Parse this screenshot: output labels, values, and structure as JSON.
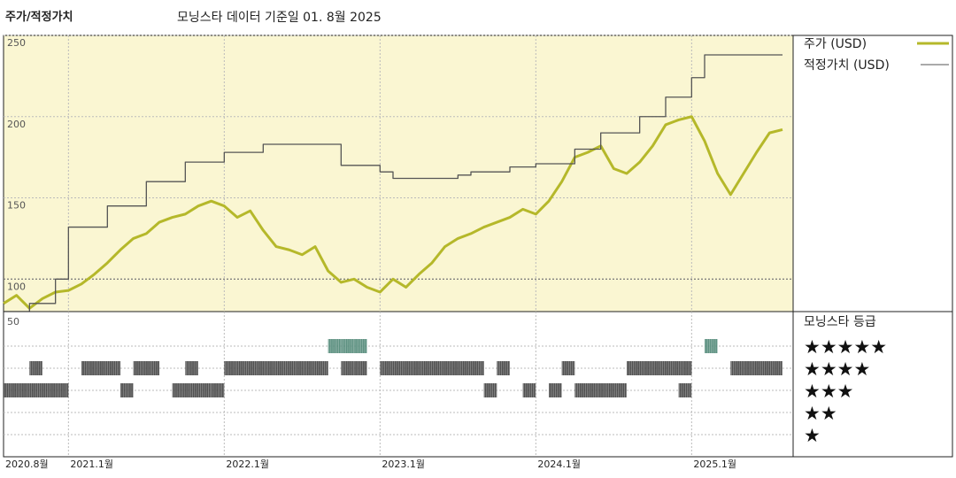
{
  "header": {
    "title": "주가/적정가치",
    "subtitle": "모닝스타 데이터 기준일 01. 8월 2025"
  },
  "colors": {
    "price": "#b5b82a",
    "fair_value": "#555555",
    "panel_bg": "#faf6d2",
    "rating_5": "#3f7d6a",
    "rating_bar": "#333333"
  },
  "chart_data": {
    "type": "line",
    "title": "주가/적정가치",
    "subtitle": "모닝스타 데이터 기준일 01. 8월 2025",
    "x_ticks": [
      "2020.8월",
      "2021.1월",
      "2022.1월",
      "2023.1월",
      "2024.1월",
      "2025.1월"
    ],
    "x_tick_dates": [
      "2020-08",
      "2021-01",
      "2022-01",
      "2023-01",
      "2024-01",
      "2025-01"
    ],
    "x_range": [
      "2020-08",
      "2025-08"
    ],
    "y_ticks": [
      100,
      150,
      200,
      250
    ],
    "ylim": [
      80,
      250
    ],
    "grid": true,
    "legend_position": "right",
    "series": [
      {
        "name": "주가 (USD)",
        "points": [
          [
            "2020-08",
            85
          ],
          [
            "2020-09",
            90
          ],
          [
            "2020-10",
            82
          ],
          [
            "2020-11",
            88
          ],
          [
            "2020-12",
            92
          ],
          [
            "2021-01",
            93
          ],
          [
            "2021-02",
            97
          ],
          [
            "2021-03",
            103
          ],
          [
            "2021-04",
            110
          ],
          [
            "2021-05",
            118
          ],
          [
            "2021-06",
            125
          ],
          [
            "2021-07",
            128
          ],
          [
            "2021-08",
            135
          ],
          [
            "2021-09",
            138
          ],
          [
            "2021-10",
            140
          ],
          [
            "2021-11",
            145
          ],
          [
            "2021-12",
            148
          ],
          [
            "2022-01",
            145
          ],
          [
            "2022-02",
            138
          ],
          [
            "2022-03",
            142
          ],
          [
            "2022-04",
            130
          ],
          [
            "2022-05",
            120
          ],
          [
            "2022-06",
            118
          ],
          [
            "2022-07",
            115
          ],
          [
            "2022-08",
            120
          ],
          [
            "2022-09",
            105
          ],
          [
            "2022-10",
            98
          ],
          [
            "2022-11",
            100
          ],
          [
            "2022-12",
            95
          ],
          [
            "2023-01",
            92
          ],
          [
            "2023-02",
            100
          ],
          [
            "2023-03",
            95
          ],
          [
            "2023-04",
            103
          ],
          [
            "2023-05",
            110
          ],
          [
            "2023-06",
            120
          ],
          [
            "2023-07",
            125
          ],
          [
            "2023-08",
            128
          ],
          [
            "2023-09",
            132
          ],
          [
            "2023-10",
            135
          ],
          [
            "2023-11",
            138
          ],
          [
            "2023-12",
            143
          ],
          [
            "2024-01",
            140
          ],
          [
            "2024-02",
            148
          ],
          [
            "2024-03",
            160
          ],
          [
            "2024-04",
            175
          ],
          [
            "2024-05",
            178
          ],
          [
            "2024-06",
            182
          ],
          [
            "2024-07",
            168
          ],
          [
            "2024-08",
            165
          ],
          [
            "2024-09",
            172
          ],
          [
            "2024-10",
            182
          ],
          [
            "2024-11",
            195
          ],
          [
            "2024-12",
            198
          ],
          [
            "2025-01",
            200
          ],
          [
            "2025-02",
            185
          ],
          [
            "2025-03",
            165
          ],
          [
            "2025-04",
            152
          ],
          [
            "2025-05",
            165
          ],
          [
            "2025-06",
            178
          ],
          [
            "2025-07",
            190
          ],
          [
            "2025-08",
            192
          ]
        ]
      },
      {
        "name": "적정가치 (USD)",
        "step": true,
        "points": [
          [
            "2020-08",
            80
          ],
          [
            "2020-10",
            85
          ],
          [
            "2020-12",
            100
          ],
          [
            "2021-01",
            132
          ],
          [
            "2021-04",
            145
          ],
          [
            "2021-07",
            160
          ],
          [
            "2021-10",
            172
          ],
          [
            "2022-01",
            178
          ],
          [
            "2022-04",
            183
          ],
          [
            "2022-10",
            170
          ],
          [
            "2023-01",
            166
          ],
          [
            "2023-02",
            162
          ],
          [
            "2023-07",
            164
          ],
          [
            "2023-08",
            166
          ],
          [
            "2023-11",
            169
          ],
          [
            "2024-01",
            171
          ],
          [
            "2024-04",
            180
          ],
          [
            "2024-06",
            190
          ],
          [
            "2024-09",
            200
          ],
          [
            "2024-11",
            212
          ],
          [
            "2025-01",
            224
          ],
          [
            "2025-02",
            238
          ],
          [
            "2025-08",
            238
          ]
        ]
      }
    ],
    "rating_panel": {
      "title": "모닝스타 등급",
      "levels": [
        "★★★★★",
        "★★★★",
        "★★★",
        "★★",
        "★"
      ],
      "axis_label": "50",
      "segments": [
        {
          "stars": 3,
          "start": "2020-08",
          "end": "2021-01"
        },
        {
          "stars": 4,
          "start": "2020-10",
          "end": "2020-11"
        },
        {
          "stars": 4,
          "start": "2021-02",
          "end": "2021-05"
        },
        {
          "stars": 4,
          "start": "2021-06",
          "end": "2021-08"
        },
        {
          "stars": 3,
          "start": "2021-05",
          "end": "2021-06"
        },
        {
          "stars": 3,
          "start": "2021-09",
          "end": "2021-12"
        },
        {
          "stars": 4,
          "start": "2021-10",
          "end": "2021-11"
        },
        {
          "stars": 3,
          "start": "2021-12",
          "end": "2022-01"
        },
        {
          "stars": 4,
          "start": "2022-01",
          "end": "2022-09"
        },
        {
          "stars": 5,
          "start": "2022-09",
          "end": "2022-10"
        },
        {
          "stars": 5,
          "start": "2022-10",
          "end": "2022-11"
        },
        {
          "stars": 5,
          "start": "2022-11",
          "end": "2022-12"
        },
        {
          "stars": 4,
          "start": "2022-10",
          "end": "2022-11"
        },
        {
          "stars": 4,
          "start": "2022-11",
          "end": "2022-12"
        },
        {
          "stars": 4,
          "start": "2023-01",
          "end": "2023-09"
        },
        {
          "stars": 3,
          "start": "2023-09",
          "end": "2023-10"
        },
        {
          "stars": 4,
          "start": "2023-10",
          "end": "2023-11"
        },
        {
          "stars": 3,
          "start": "2023-12",
          "end": "2024-01"
        },
        {
          "stars": 3,
          "start": "2024-02",
          "end": "2024-03"
        },
        {
          "stars": 4,
          "start": "2024-03",
          "end": "2024-04"
        },
        {
          "stars": 3,
          "start": "2024-04",
          "end": "2024-08"
        },
        {
          "stars": 4,
          "start": "2024-08",
          "end": "2025-01"
        },
        {
          "stars": 3,
          "start": "2024-12",
          "end": "2025-01"
        },
        {
          "stars": 5,
          "start": "2025-02",
          "end": "2025-03"
        },
        {
          "stars": 4,
          "start": "2025-04",
          "end": "2025-08"
        }
      ]
    }
  }
}
